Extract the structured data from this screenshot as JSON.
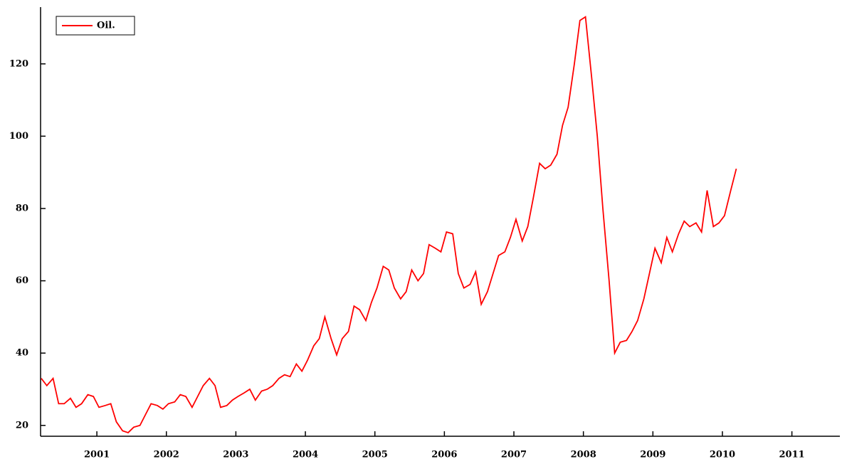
{
  "chart_data": {
    "type": "line",
    "x": [
      2000.2,
      2000.28,
      2000.37,
      2000.45,
      2000.53,
      2000.62,
      2000.7,
      2000.78,
      2000.87,
      2000.95,
      2001.03,
      2001.12,
      2001.2,
      2001.28,
      2001.37,
      2001.45,
      2001.53,
      2001.62,
      2001.7,
      2001.78,
      2001.87,
      2001.95,
      2002.03,
      2002.12,
      2002.2,
      2002.28,
      2002.37,
      2002.45,
      2002.53,
      2002.62,
      2002.7,
      2002.78,
      2002.87,
      2002.95,
      2003.03,
      2003.12,
      2003.2,
      2003.28,
      2003.37,
      2003.45,
      2003.53,
      2003.62,
      2003.7,
      2003.78,
      2003.87,
      2003.95,
      2004.03,
      2004.12,
      2004.2,
      2004.28,
      2004.37,
      2004.45,
      2004.53,
      2004.62,
      2004.7,
      2004.78,
      2004.87,
      2004.95,
      2005.03,
      2005.12,
      2005.2,
      2005.28,
      2005.37,
      2005.45,
      2005.53,
      2005.62,
      2005.7,
      2005.78,
      2005.87,
      2005.95,
      2006.03,
      2006.12,
      2006.2,
      2006.28,
      2006.37,
      2006.45,
      2006.53,
      2006.62,
      2006.7,
      2006.78,
      2006.87,
      2006.95,
      2007.03,
      2007.12,
      2007.2,
      2007.28,
      2007.37,
      2007.45,
      2007.53,
      2007.62,
      2007.7,
      2007.78,
      2007.87,
      2007.95,
      2008.03,
      2008.12,
      2008.2,
      2008.28,
      2008.37,
      2008.45,
      2008.53,
      2008.62,
      2008.7,
      2008.78,
      2008.87,
      2008.95,
      2009.03,
      2009.12,
      2009.2,
      2009.28,
      2009.37,
      2009.45,
      2009.53,
      2009.62,
      2009.7,
      2009.78,
      2009.87,
      2009.95,
      2010.03,
      2010.12,
      2010.2
    ],
    "series": [
      {
        "name": "Oil.",
        "color": "#ff0000",
        "values": [
          33,
          31,
          33,
          26,
          26,
          27.5,
          25,
          26,
          28.5,
          28,
          25,
          25.5,
          26,
          21,
          18.5,
          18,
          19.5,
          20,
          23,
          26,
          25.5,
          24.5,
          26,
          26.5,
          28.5,
          28,
          25,
          28,
          31,
          33,
          31,
          25,
          25.5,
          27,
          28,
          29,
          30,
          27,
          29.5,
          30,
          31,
          33,
          34,
          33.5,
          37,
          35,
          38,
          42,
          44,
          50,
          44,
          39.5,
          44,
          46,
          53,
          52,
          49,
          54,
          58,
          64,
          63,
          58,
          55,
          57,
          63,
          60,
          62,
          70,
          69,
          68,
          73.5,
          73,
          62,
          58,
          59,
          62.5,
          53.5,
          57,
          62,
          67,
          68,
          72,
          77,
          71,
          75,
          83,
          92.5,
          91,
          92,
          95,
          103,
          108,
          120,
          132,
          133,
          116,
          100,
          80,
          60,
          40,
          43,
          43.5,
          46,
          49,
          55,
          62,
          69,
          65,
          72,
          68,
          73,
          76.5,
          75,
          76,
          73.5,
          85,
          75,
          76,
          78,
          85,
          91
        ]
      }
    ],
    "xlim": [
      2000.19,
      2011.69
    ],
    "xticks": [
      2001,
      2002,
      2003,
      2004,
      2005,
      2006,
      2007,
      2008,
      2009,
      2010,
      2011
    ],
    "ylim": [
      17,
      135.7
    ],
    "yticks": [
      20,
      40,
      60,
      80,
      100,
      120
    ],
    "legend": "upper left"
  }
}
